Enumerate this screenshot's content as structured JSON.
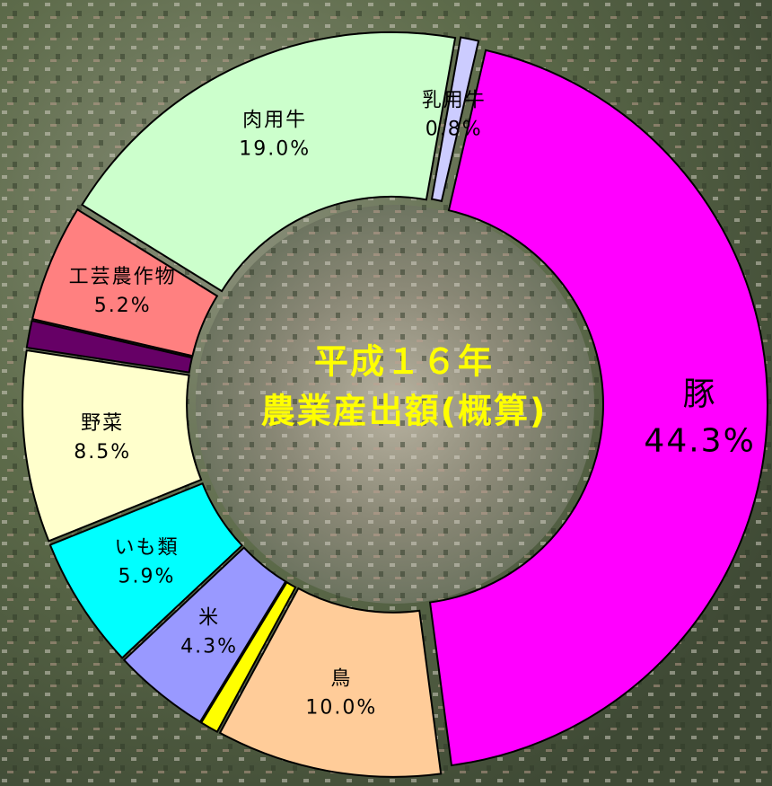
{
  "chart_data": {
    "type": "donut",
    "title": "平成１６年",
    "subtitle": "農業産出額(概算)",
    "categories": [
      "豚",
      "鳥",
      null,
      "米",
      "いも類",
      "野菜",
      null,
      "工芸農作物",
      "肉用牛",
      "乳用牛"
    ],
    "values": [
      44.3,
      10.0,
      0.8,
      4.3,
      5.9,
      8.5,
      1.2,
      5.2,
      19.0,
      0.8
    ],
    "value_labels": [
      "44.3%",
      "10.0%",
      null,
      "4.3%",
      "5.9%",
      "8.5%",
      null,
      "5.2%",
      "19.0%",
      "0.8%"
    ],
    "colors": [
      "#ff00ff",
      "#ffcc99",
      "#ffff00",
      "#9999ff",
      "#00ffff",
      "#ffffcc",
      "#660066",
      "#ff8080",
      "#ccffcc",
      "#ccccff"
    ]
  }
}
